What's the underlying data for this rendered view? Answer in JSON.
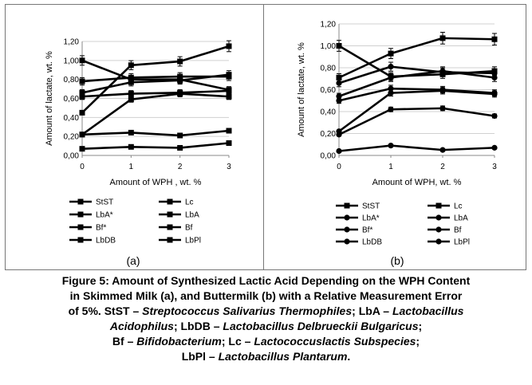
{
  "chart_data": [
    {
      "type": "line",
      "panel_label": "(a)",
      "xlabel": "Amount  of  WPH , wt. %",
      "ylabel": "Amount of lactate, wt. %",
      "x": [
        0,
        1,
        2,
        3
      ],
      "xlim": [
        0,
        3
      ],
      "ylim": [
        0,
        1.2
      ],
      "y_ticks": [
        "0,00",
        "0,20",
        "0,40",
        "0,60",
        "0,80",
        "1,00",
        "1,20"
      ],
      "x_ticks": [
        "0",
        "1",
        "2",
        "3"
      ],
      "grid": "horizontal",
      "legend_position": "bottom",
      "series": [
        {
          "name": "StST",
          "values": [
            1.0,
            0.8,
            0.8,
            0.69
          ],
          "marker": "square"
        },
        {
          "name": "Lc",
          "values": [
            0.66,
            0.77,
            0.79,
            0.85
          ],
          "marker": "square"
        },
        {
          "name": "LbA*",
          "values": [
            0.78,
            0.82,
            0.83,
            0.83
          ],
          "marker": "square"
        },
        {
          "name": "LbA",
          "values": [
            0.62,
            0.65,
            0.66,
            0.68
          ],
          "marker": "square"
        },
        {
          "name": "Bf*",
          "values": [
            0.22,
            0.59,
            0.65,
            0.62
          ],
          "marker": "square"
        },
        {
          "name": "Bf",
          "values": [
            0.45,
            0.95,
            0.99,
            1.15
          ],
          "marker": "square"
        },
        {
          "name": "LbDB",
          "values": [
            0.07,
            0.09,
            0.08,
            0.13
          ],
          "marker": "square"
        },
        {
          "name": "LbPl",
          "values": [
            0.22,
            0.24,
            0.21,
            0.26
          ],
          "marker": "square"
        }
      ]
    },
    {
      "type": "line",
      "panel_label": "(b)",
      "xlabel": "Amount of  WPH, wt. %",
      "ylabel": "Amount of lactate, wt. %",
      "x": [
        0,
        1,
        2,
        3
      ],
      "xlim": [
        0,
        3
      ],
      "ylim": [
        0,
        1.2
      ],
      "y_ticks": [
        "0,00",
        "0,20",
        "0,40",
        "0,60",
        "0,80",
        "1,00",
        "1,20"
      ],
      "x_ticks": [
        "0",
        "1",
        "2",
        "3"
      ],
      "grid": "horizontal",
      "legend_position": "bottom",
      "series": [
        {
          "name": "StST",
          "values": [
            1.0,
            0.72,
            0.74,
            0.77
          ],
          "marker": "square"
        },
        {
          "name": "Lc",
          "values": [
            0.71,
            0.93,
            1.07,
            1.06
          ],
          "marker": "square"
        },
        {
          "name": "LbA*",
          "values": [
            0.66,
            0.81,
            0.76,
            0.75
          ],
          "marker": "circle"
        },
        {
          "name": "LbA",
          "values": [
            0.54,
            0.71,
            0.77,
            0.71
          ],
          "marker": "circle"
        },
        {
          "name": "Bf*",
          "values": [
            0.5,
            0.61,
            0.6,
            0.57
          ],
          "marker": "circle"
        },
        {
          "name": "Bf",
          "values": [
            0.22,
            0.57,
            0.59,
            0.56
          ],
          "marker": "circle"
        },
        {
          "name": "LbDB",
          "values": [
            0.04,
            0.09,
            0.05,
            0.07
          ],
          "marker": "circle"
        },
        {
          "name": "LbPl",
          "values": [
            0.19,
            0.42,
            0.43,
            0.36
          ],
          "marker": "circle"
        }
      ]
    }
  ],
  "caption": {
    "line1": "Figure 5: Amount of Synthesized Lactic Acid Depending on the WPH Content",
    "line2": "in Skimmed Milk (a), and Buttermilk (b) with a Relative Measurement Error",
    "line3a": "of 5%. StST – ",
    "line3b": "Streptococcus Salivarius Thermophiles",
    "line3c": "; LbA – ",
    "line3d": "Lactobacillus",
    "line4a": "Acidophilus",
    "line4b": "; LbDB – ",
    "line4c": "Lactobacillus Delbrueckii Bulgaricus",
    "line4d": ";",
    "line5a": "Bf – ",
    "line5b": "Bifidobacterium",
    "line5c": "; Lc – ",
    "line5d": "Lactococcuslactis Subspecies",
    "line5e": ";",
    "line6a": "LbPl – ",
    "line6b": "Lactobacillus Plantarum",
    "line6c": "."
  }
}
